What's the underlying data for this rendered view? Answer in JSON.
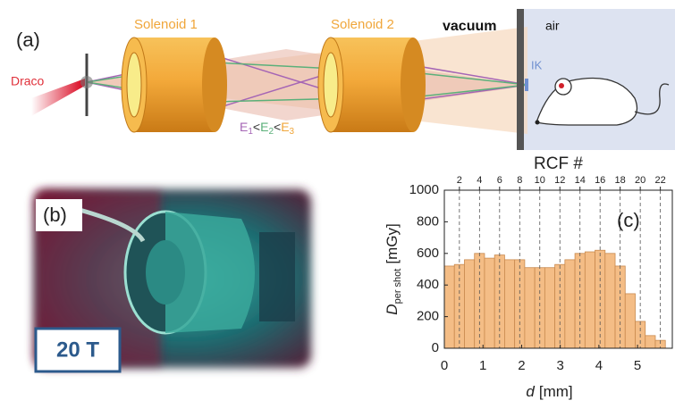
{
  "panel_a": {
    "label": "(a)",
    "solenoid_1": "Solenoid 1",
    "solenoid_2": "Solenoid 2",
    "vacuum": "vacuum",
    "air": "air",
    "source": "Draco",
    "detector": "IK",
    "energies": [
      {
        "symbol": "E",
        "index": "1"
      },
      {
        "symbol": "E",
        "index": "2"
      },
      {
        "symbol": "E",
        "index": "3"
      }
    ],
    "energy_separator": "<"
  },
  "panel_b": {
    "label": "(b)",
    "field": "20 T"
  },
  "chart_data": {
    "type": "histogram",
    "panel_label": "(c)",
    "title": "RCF #",
    "xlabel": {
      "variable": "d",
      "unit": "[mm]"
    },
    "ylabel": {
      "variable": "D",
      "subscript": "per shot",
      "unit": "[mGy]"
    },
    "bins": [
      0,
      0.26,
      0.52,
      0.78,
      1.04,
      1.3,
      1.56,
      1.82,
      2.08,
      2.34,
      2.6,
      2.86,
      3.12,
      3.38,
      3.64,
      3.9,
      4.16,
      4.42,
      4.68,
      4.94,
      5.2,
      5.46,
      5.72
    ],
    "values": [
      520,
      530,
      560,
      600,
      570,
      590,
      560,
      560,
      510,
      510,
      510,
      530,
      560,
      600,
      610,
      620,
      600,
      520,
      345,
      170,
      80,
      50
    ],
    "color": "#f4bd86",
    "edge_color": "#c98a4f",
    "xlim": [
      0,
      5.9
    ],
    "xticks": [
      0,
      1,
      2,
      3,
      4,
      5
    ],
    "ylim": [
      0,
      1000
    ],
    "yticks": [
      0,
      200,
      400,
      600,
      800,
      1000
    ],
    "x2lim": [
      0.5,
      23.19
    ],
    "x2ticks": [
      2,
      4,
      6,
      8,
      10,
      12,
      14,
      16,
      18,
      20,
      22
    ],
    "x2grid": "dashed"
  }
}
